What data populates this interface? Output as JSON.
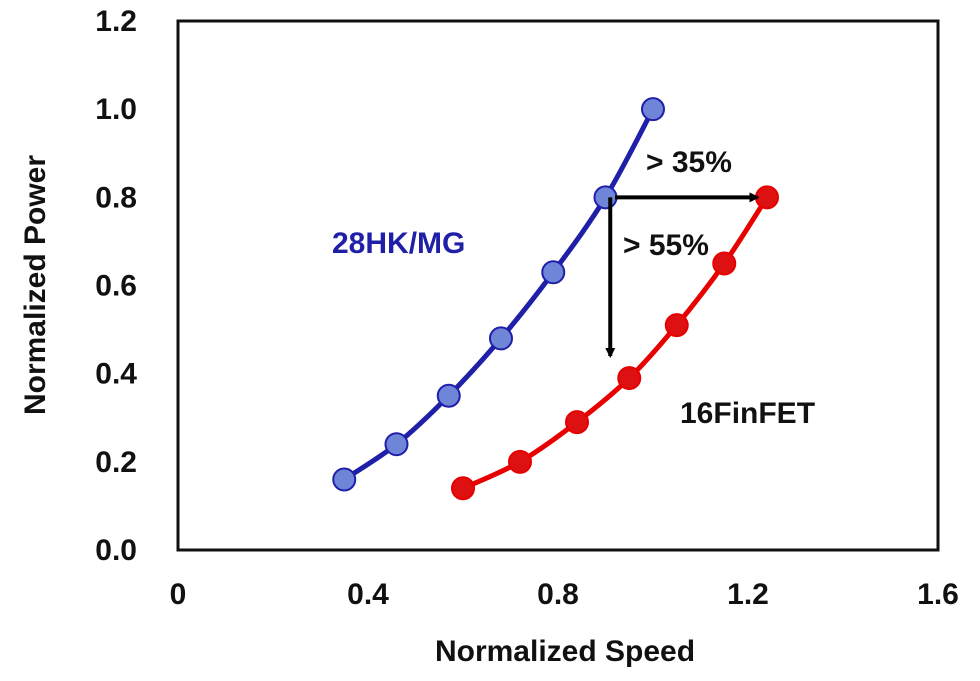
{
  "chart_data": {
    "type": "line",
    "xlabel": "Normalized Speed",
    "ylabel": "Normalized Power",
    "xlim": [
      0,
      1.6
    ],
    "ylim": [
      0,
      1.2
    ],
    "xticks": [
      "0",
      "0.4",
      "0.8",
      "1.2",
      "1.6"
    ],
    "yticks": [
      "0.0",
      "0.2",
      "0.4",
      "0.6",
      "0.8",
      "1.0",
      "1.2"
    ],
    "grid": false,
    "series": [
      {
        "name": "28HK/MG",
        "color": "#1f1fa8",
        "marker_color": "#6f86d8",
        "x": [
          0.35,
          0.46,
          0.57,
          0.68,
          0.79,
          0.9,
          1.0
        ],
        "y": [
          0.16,
          0.24,
          0.35,
          0.48,
          0.63,
          0.8,
          1.0
        ]
      },
      {
        "name": "16FinFET",
        "color": "#e60000",
        "marker_color": "#dd1111",
        "x": [
          0.6,
          0.72,
          0.84,
          0.95,
          1.05,
          1.15,
          1.24
        ],
        "y": [
          0.14,
          0.2,
          0.29,
          0.39,
          0.51,
          0.65,
          0.8
        ]
      }
    ],
    "annotations": [
      {
        "text": "> 35%",
        "from": [
          0.92,
          0.8
        ],
        "to": [
          1.22,
          0.8
        ]
      },
      {
        "text": "> 55%",
        "from": [
          0.91,
          0.8
        ],
        "to": [
          0.91,
          0.44
        ]
      }
    ]
  }
}
